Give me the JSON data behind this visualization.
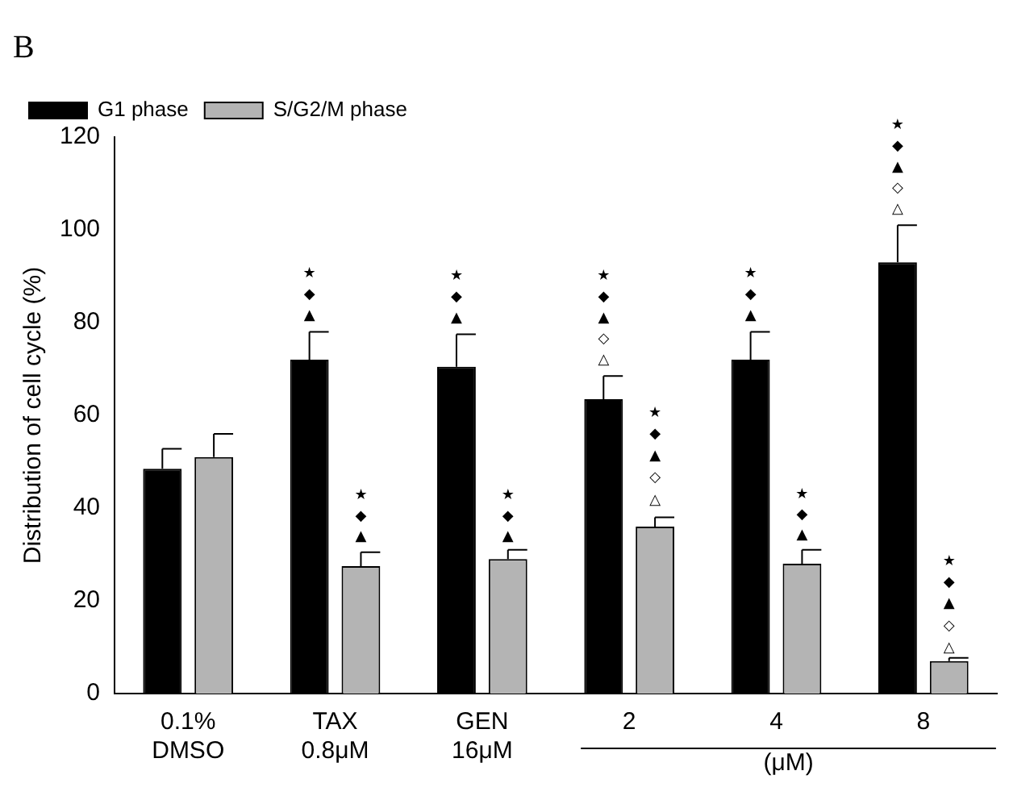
{
  "chart_data": {
    "type": "bar",
    "title": "B",
    "ylabel": "Distribution of cell cycle (%)",
    "categories": [
      "0.1% DMSO",
      "TAX 0.8μM",
      "GEN 16μM",
      "2",
      "4",
      "8"
    ],
    "series": [
      {
        "name": "G1 phase",
        "color": "#000000",
        "values": [
          48.5,
          72,
          70.5,
          63.5,
          72,
          93
        ],
        "errors": [
          4.3,
          6,
          7,
          5,
          6,
          8
        ]
      },
      {
        "name": "S/G2/M phase",
        "color": "#b4b4b4",
        "values": [
          51,
          27.5,
          29,
          36,
          28,
          7
        ],
        "errors": [
          5,
          3,
          2,
          2,
          3,
          0.7
        ]
      }
    ],
    "ylim": [
      0,
      120
    ],
    "yticks": [
      0,
      20,
      40,
      60,
      80,
      100,
      120
    ],
    "grid": false,
    "legend": "top left",
    "annotations": [
      "(μM)",
      "▲",
      "◆",
      "★",
      "▲",
      "◆",
      "★",
      "△",
      "◇",
      "▲",
      "◆",
      "★",
      "▲",
      "◆",
      "★",
      "△",
      "◇",
      "▲",
      "◆",
      "★",
      {
        "text": "▲",
        "x": "TAX 0.8μM",
        "y": 33.8
      },
      {
        "text": "◆",
        "x": "TAX 0.8μM",
        "y": 38.2
      },
      {
        "text": "★",
        "x": "TAX 0.8μM",
        "y": 42.7
      },
      {
        "text": "▲",
        "x": "GEN 16μM",
        "y": 33.8
      },
      {
        "text": "◆",
        "x": "GEN 16μM",
        "y": 38.2
      },
      {
        "text": "★",
        "x": "GEN 16μM",
        "y": 42.7
      },
      {
        "text": "△",
        "x": "2",
        "y": 41.6
      },
      {
        "text": "◇",
        "x": "2",
        "y": 46.5
      },
      {
        "text": "▲",
        "x": "2",
        "y": 51.3
      },
      {
        "text": "◆",
        "x": "2",
        "y": 55.9
      },
      {
        "text": "★",
        "x": "2",
        "y": 60.4
      },
      {
        "text": "▲",
        "x": "4",
        "y": 34.2
      },
      {
        "text": "◆",
        "x": "4",
        "y": 38.5
      },
      {
        "text": "★",
        "x": "4",
        "y": 42.9
      },
      {
        "text": "△",
        "x": "8",
        "y": 9.8
      },
      {
        "text": "◇",
        "x": "8",
        "y": 14.6
      },
      {
        "text": "▲",
        "x": "8",
        "y": 19.4
      },
      {
        "text": "◆",
        "x": "8",
        "y": 23.9
      },
      {
        "text": "★",
        "x": "8",
        "y": 28.5
      }
    ]
  }
}
